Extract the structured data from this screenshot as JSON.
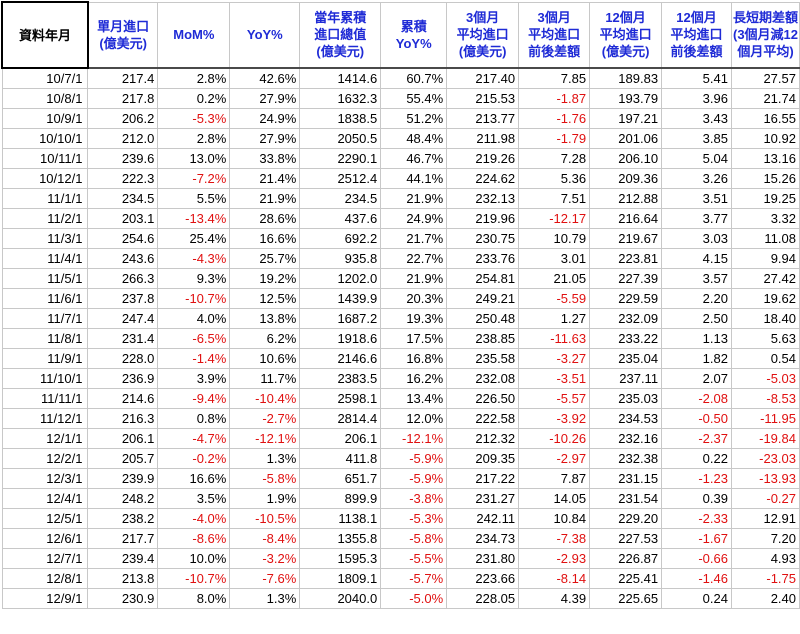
{
  "columns": [
    "資料年月",
    "單月進口\n(億美元)",
    "MoM%",
    "YoY%",
    "當年累積\n進口總值\n(億美元)",
    "累積\nYoY%",
    "3個月\n平均進口\n(億美元)",
    "3個月\n平均進口\n前後差額",
    "12個月\n平均進口\n(億美元)",
    "12個月\n平均進口\n前後差額",
    "長短期差額\n(3個月減12\n個月平均)"
  ],
  "rows": [
    [
      "10/7/1",
      "217.4",
      "2.8%",
      "42.6%",
      "1414.6",
      "60.7%",
      "217.40",
      "7.85",
      "189.83",
      "5.41",
      "27.57"
    ],
    [
      "10/8/1",
      "217.8",
      "0.2%",
      "27.9%",
      "1632.3",
      "55.4%",
      "215.53",
      "-1.87",
      "193.79",
      "3.96",
      "21.74"
    ],
    [
      "10/9/1",
      "206.2",
      "-5.3%",
      "24.9%",
      "1838.5",
      "51.2%",
      "213.77",
      "-1.76",
      "197.21",
      "3.43",
      "16.55"
    ],
    [
      "10/10/1",
      "212.0",
      "2.8%",
      "27.9%",
      "2050.5",
      "48.4%",
      "211.98",
      "-1.79",
      "201.06",
      "3.85",
      "10.92"
    ],
    [
      "10/11/1",
      "239.6",
      "13.0%",
      "33.8%",
      "2290.1",
      "46.7%",
      "219.26",
      "7.28",
      "206.10",
      "5.04",
      "13.16"
    ],
    [
      "10/12/1",
      "222.3",
      "-7.2%",
      "21.4%",
      "2512.4",
      "44.1%",
      "224.62",
      "5.36",
      "209.36",
      "3.26",
      "15.26"
    ],
    [
      "11/1/1",
      "234.5",
      "5.5%",
      "21.9%",
      "234.5",
      "21.9%",
      "232.13",
      "7.51",
      "212.88",
      "3.51",
      "19.25"
    ],
    [
      "11/2/1",
      "203.1",
      "-13.4%",
      "28.6%",
      "437.6",
      "24.9%",
      "219.96",
      "-12.17",
      "216.64",
      "3.77",
      "3.32"
    ],
    [
      "11/3/1",
      "254.6",
      "25.4%",
      "16.6%",
      "692.2",
      "21.7%",
      "230.75",
      "10.79",
      "219.67",
      "3.03",
      "11.08"
    ],
    [
      "11/4/1",
      "243.6",
      "-4.3%",
      "25.7%",
      "935.8",
      "22.7%",
      "233.76",
      "3.01",
      "223.81",
      "4.15",
      "9.94"
    ],
    [
      "11/5/1",
      "266.3",
      "9.3%",
      "19.2%",
      "1202.0",
      "21.9%",
      "254.81",
      "21.05",
      "227.39",
      "3.57",
      "27.42"
    ],
    [
      "11/6/1",
      "237.8",
      "-10.7%",
      "12.5%",
      "1439.9",
      "20.3%",
      "249.21",
      "-5.59",
      "229.59",
      "2.20",
      "19.62"
    ],
    [
      "11/7/1",
      "247.4",
      "4.0%",
      "13.8%",
      "1687.2",
      "19.3%",
      "250.48",
      "1.27",
      "232.09",
      "2.50",
      "18.40"
    ],
    [
      "11/8/1",
      "231.4",
      "-6.5%",
      "6.2%",
      "1918.6",
      "17.5%",
      "238.85",
      "-11.63",
      "233.22",
      "1.13",
      "5.63"
    ],
    [
      "11/9/1",
      "228.0",
      "-1.4%",
      "10.6%",
      "2146.6",
      "16.8%",
      "235.58",
      "-3.27",
      "235.04",
      "1.82",
      "0.54"
    ],
    [
      "11/10/1",
      "236.9",
      "3.9%",
      "11.7%",
      "2383.5",
      "16.2%",
      "232.08",
      "-3.51",
      "237.11",
      "2.07",
      "-5.03"
    ],
    [
      "11/11/1",
      "214.6",
      "-9.4%",
      "-10.4%",
      "2598.1",
      "13.4%",
      "226.50",
      "-5.57",
      "235.03",
      "-2.08",
      "-8.53"
    ],
    [
      "11/12/1",
      "216.3",
      "0.8%",
      "-2.7%",
      "2814.4",
      "12.0%",
      "222.58",
      "-3.92",
      "234.53",
      "-0.50",
      "-11.95"
    ],
    [
      "12/1/1",
      "206.1",
      "-4.7%",
      "-12.1%",
      "206.1",
      "-12.1%",
      "212.32",
      "-10.26",
      "232.16",
      "-2.37",
      "-19.84"
    ],
    [
      "12/2/1",
      "205.7",
      "-0.2%",
      "1.3%",
      "411.8",
      "-5.9%",
      "209.35",
      "-2.97",
      "232.38",
      "0.22",
      "-23.03"
    ],
    [
      "12/3/1",
      "239.9",
      "16.6%",
      "-5.8%",
      "651.7",
      "-5.9%",
      "217.22",
      "7.87",
      "231.15",
      "-1.23",
      "-13.93"
    ],
    [
      "12/4/1",
      "248.2",
      "3.5%",
      "1.9%",
      "899.9",
      "-3.8%",
      "231.27",
      "14.05",
      "231.54",
      "0.39",
      "-0.27"
    ],
    [
      "12/5/1",
      "238.2",
      "-4.0%",
      "-10.5%",
      "1138.1",
      "-5.3%",
      "242.11",
      "10.84",
      "229.20",
      "-2.33",
      "12.91"
    ],
    [
      "12/6/1",
      "217.7",
      "-8.6%",
      "-8.4%",
      "1355.8",
      "-5.8%",
      "234.73",
      "-7.38",
      "227.53",
      "-1.67",
      "7.20"
    ],
    [
      "12/7/1",
      "239.4",
      "10.0%",
      "-3.2%",
      "1595.3",
      "-5.5%",
      "231.80",
      "-2.93",
      "226.87",
      "-0.66",
      "4.93"
    ],
    [
      "12/8/1",
      "213.8",
      "-10.7%",
      "-7.6%",
      "1809.1",
      "-5.7%",
      "223.66",
      "-8.14",
      "225.41",
      "-1.46",
      "-1.75"
    ],
    [
      "12/9/1",
      "230.9",
      "8.0%",
      "1.3%",
      "2040.0",
      "-5.0%",
      "228.05",
      "4.39",
      "225.65",
      "0.24",
      "2.40"
    ]
  ],
  "colors": {
    "header_text": "#1f2bd6",
    "negative_text": "#e01010",
    "grid": "#c8c8c8"
  }
}
